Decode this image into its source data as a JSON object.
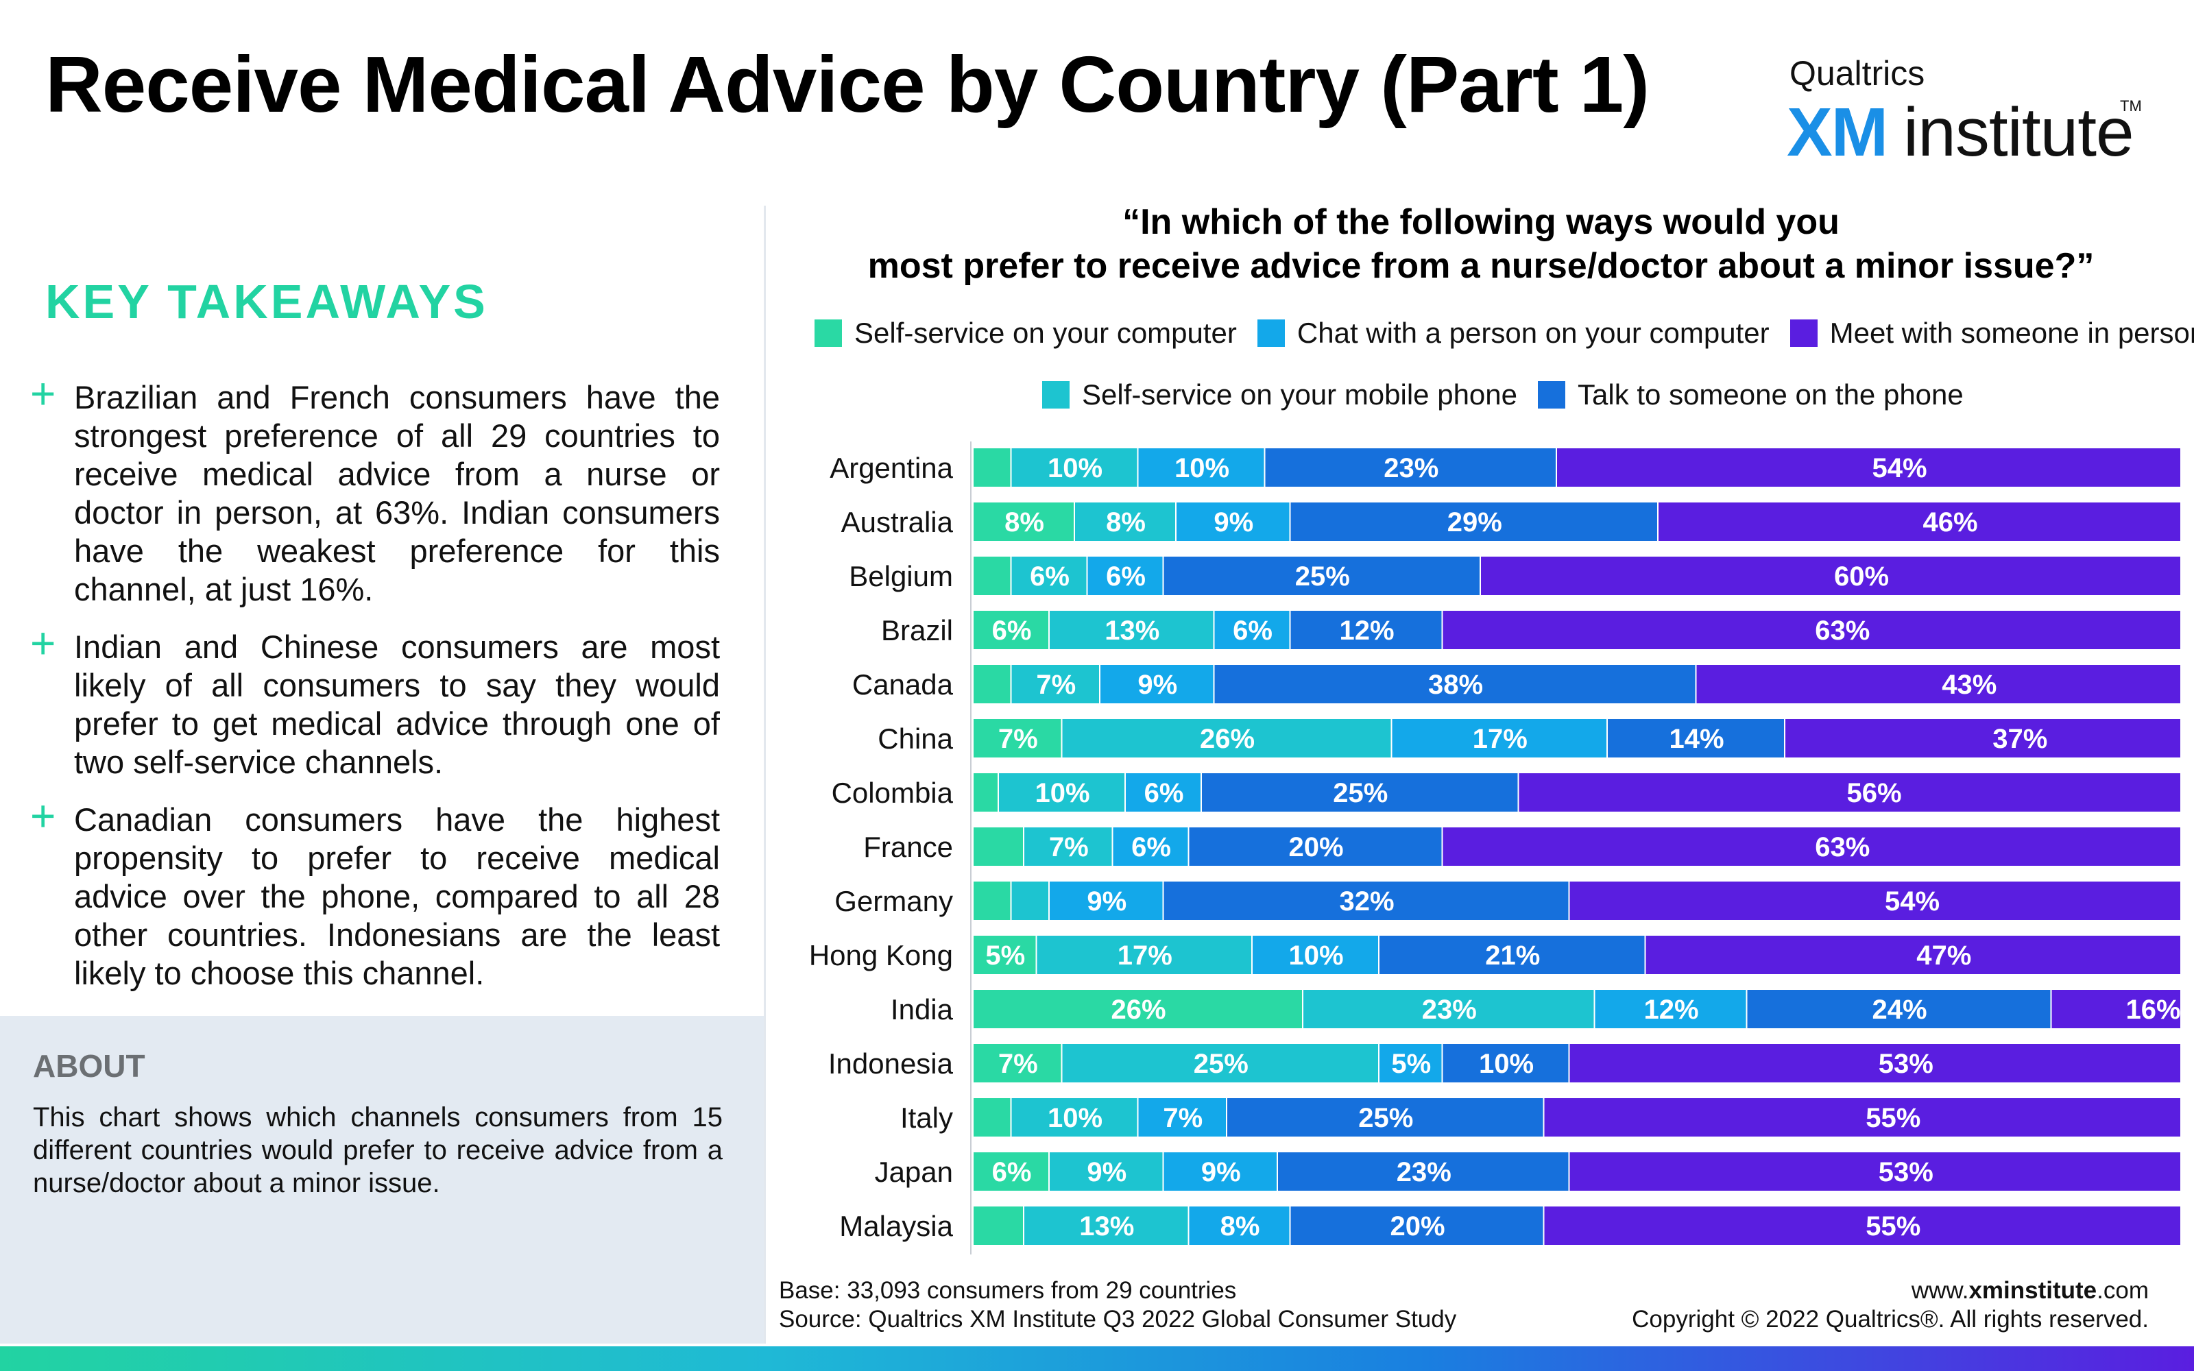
{
  "header": {
    "title": "Receive Medical Advice by Country (Part 1)",
    "logo_brand": "Qualtrics",
    "logo_xm": "XM",
    "logo_institute": "institute",
    "logo_tm": "TM"
  },
  "takeaways": {
    "heading": "KEY TAKEAWAYS",
    "plus_glyph": "+",
    "items": [
      "Brazilian and French consumers have the strongest preference of all 29 countries to receive medical advice from a nurse or doctor in person, at 63%. Indian consumers have the weakest preference for this channel, at just 16%.",
      "Indian and Chinese consumers are most likely of all consumers to say they would prefer to get medical advice through one of two self-service channels.",
      "Canadian consumers have the highest propensity to prefer to receive medical advice over the phone, compared to all 28 other countries. Indonesians are the least likely to choose this channel."
    ]
  },
  "about": {
    "heading": "ABOUT",
    "text": "This chart shows which channels consumers from 15 different countries would prefer to receive advice from a nurse/doctor about a minor issue."
  },
  "question": {
    "line1": "“In which of the following ways would you",
    "line2": "most prefer to receive advice from a nurse/doctor about a minor issue?”"
  },
  "footer": {
    "base": "Base: 33,093 consumers from 29 countries",
    "source": "Source: Qualtrics XM Institute Q3 2022 Global Consumer Study",
    "website_prefix": "www.",
    "website_bold": "xminstitute",
    "website_suffix": ".com",
    "copyright": "Copyright © 2022 Qualtrics®. All rights reserved."
  },
  "chart_data": {
    "type": "bar",
    "orientation": "horizontal",
    "stacked": true,
    "normalized": true,
    "xlim": [
      0,
      100
    ],
    "label_threshold": 5,
    "series": [
      {
        "name": "Self-service on your computer",
        "color": "#2ad9a4",
        "values": [
          3,
          8,
          3,
          6,
          3,
          7,
          2,
          4,
          3,
          5,
          26,
          7,
          3,
          6,
          4
        ]
      },
      {
        "name": "Self-service on your mobile phone",
        "color": "#1dc4d0",
        "values": [
          10,
          8,
          6,
          13,
          7,
          26,
          10,
          7,
          3,
          17,
          23,
          25,
          10,
          9,
          13
        ]
      },
      {
        "name": "Chat with a person on your computer",
        "color": "#13a8ea",
        "values": [
          10,
          9,
          6,
          6,
          9,
          17,
          6,
          6,
          9,
          10,
          12,
          5,
          7,
          9,
          8
        ]
      },
      {
        "name": "Talk to someone on the phone",
        "color": "#1670dc",
        "values": [
          23,
          29,
          25,
          12,
          38,
          14,
          25,
          20,
          32,
          21,
          24,
          10,
          25,
          23,
          20
        ]
      },
      {
        "name": "Meet with someone in person",
        "color": "#5a1ee0",
        "values": [
          54,
          46,
          60,
          63,
          43,
          37,
          56,
          63,
          54,
          47,
          16,
          53,
          55,
          53,
          55
        ]
      }
    ],
    "categories": [
      "Argentina",
      "Australia",
      "Belgium",
      "Brazil",
      "Canada",
      "China",
      "Colombia",
      "France",
      "Germany",
      "Hong Kong",
      "India",
      "Indonesia",
      "Italy",
      "Japan",
      "Malaysia"
    ]
  }
}
